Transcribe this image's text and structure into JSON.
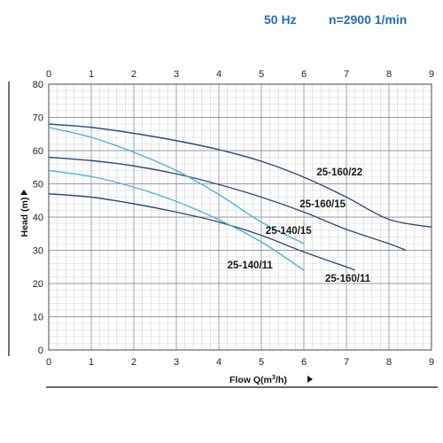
{
  "header": {
    "frequency": "50 Hz",
    "speed": "n=2900 1/min",
    "color": "#1f6fb8"
  },
  "chart_data": {
    "type": "line",
    "xlabel_text": "Flow Q(m",
    "xlabel_sup": "3",
    "xlabel_tail": "/h)",
    "ylabel": "Head (m)",
    "xlim": [
      0,
      9
    ],
    "ylim": [
      0,
      80
    ],
    "x_ticks": [
      "0",
      "1",
      "2",
      "3",
      "4",
      "5",
      "6",
      "7",
      "8",
      "9"
    ],
    "y_ticks": [
      "0",
      "10",
      "20",
      "30",
      "40",
      "50",
      "60",
      "70",
      "80"
    ],
    "grid": true,
    "series": [
      {
        "name": "25-160/22",
        "color": "#2a4d78",
        "x": [
          0,
          1,
          2,
          3,
          4,
          5,
          6,
          7,
          8,
          9
        ],
        "y": [
          68,
          67,
          65.2,
          63,
          60.3,
          56.8,
          52,
          46,
          39.3,
          37
        ]
      },
      {
        "name": "25-160/15",
        "color": "#2a4d78",
        "x": [
          0,
          1,
          2,
          3,
          4,
          5,
          6,
          7,
          8,
          8.4
        ],
        "y": [
          58,
          57,
          55.4,
          53,
          49.8,
          46,
          41.5,
          36.3,
          32,
          30
        ]
      },
      {
        "name": "25-140/15",
        "color": "#4fb2d6",
        "x": [
          0,
          1,
          2,
          3,
          4,
          5,
          6
        ],
        "y": [
          67,
          64,
          59.5,
          54,
          46.8,
          38.5,
          32
        ]
      },
      {
        "name": "25-160/11",
        "color": "#2a4d78",
        "x": [
          0,
          1,
          2,
          3,
          4,
          5,
          6,
          7,
          7.2
        ],
        "y": [
          47,
          46,
          44,
          41.5,
          38.5,
          34.5,
          29.5,
          25,
          24
        ]
      },
      {
        "name": "25-140/11",
        "color": "#4fb2d6",
        "x": [
          0,
          1,
          2,
          3,
          4,
          5,
          6
        ],
        "y": [
          54,
          52.2,
          49,
          44.7,
          39.2,
          32.5,
          24
        ]
      }
    ]
  }
}
